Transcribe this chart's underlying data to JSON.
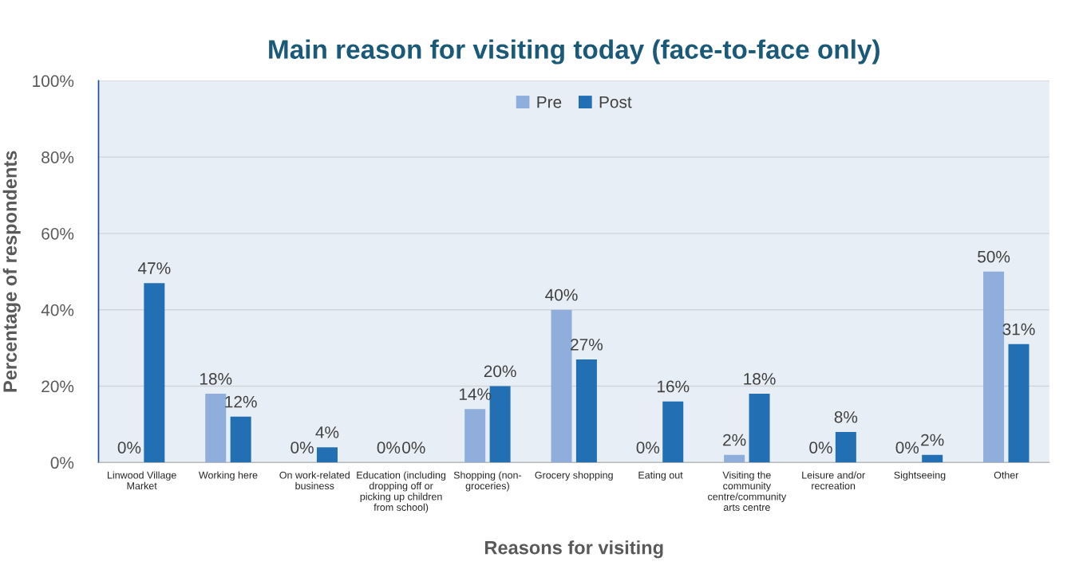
{
  "chart_data": {
    "type": "bar",
    "title": "Main reason for visiting today (face-to-face only)",
    "xlabel": "Reasons for visiting",
    "ylabel": "Percentage of respondents",
    "categories": [
      "Linwood Village\nMarket",
      "Working here",
      "On work-related\nbusiness",
      "Education (including\ndropping off or\npicking up children\nfrom school)",
      "Shopping (non-\ngroceries)",
      "Grocery shopping",
      "Eating out",
      "Visiting the\ncommunity\ncentre/community\narts centre",
      "Leisure and/or\nrecreation",
      "Sightseeing",
      "Other"
    ],
    "series": [
      {
        "name": "Pre",
        "color": "#8faedb",
        "values": [
          0,
          18,
          0,
          0,
          14,
          40,
          0,
          2,
          0,
          0,
          50
        ],
        "value_labels": [
          "0%",
          "18%",
          "0%",
          "0%",
          "14%",
          "40%",
          "0%",
          "2%",
          "0%",
          "0%",
          "50%"
        ]
      },
      {
        "name": "Post",
        "color": "#2270b3",
        "values": [
          47,
          12,
          4,
          0,
          20,
          27,
          16,
          18,
          8,
          2,
          31
        ],
        "value_labels": [
          "47%",
          "12%",
          "4%",
          "0%",
          "20%",
          "27%",
          "16%",
          "18%",
          "8%",
          "2%",
          "31%"
        ]
      }
    ],
    "ylim": [
      0,
      100
    ],
    "yticks": [
      {
        "value": 0,
        "label": "0%"
      },
      {
        "value": 20,
        "label": "20%"
      },
      {
        "value": 40,
        "label": "40%"
      },
      {
        "value": 60,
        "label": "60%"
      },
      {
        "value": 80,
        "label": "80%"
      },
      {
        "value": 100,
        "label": "100%"
      }
    ],
    "grid": "y",
    "legend": "top"
  }
}
